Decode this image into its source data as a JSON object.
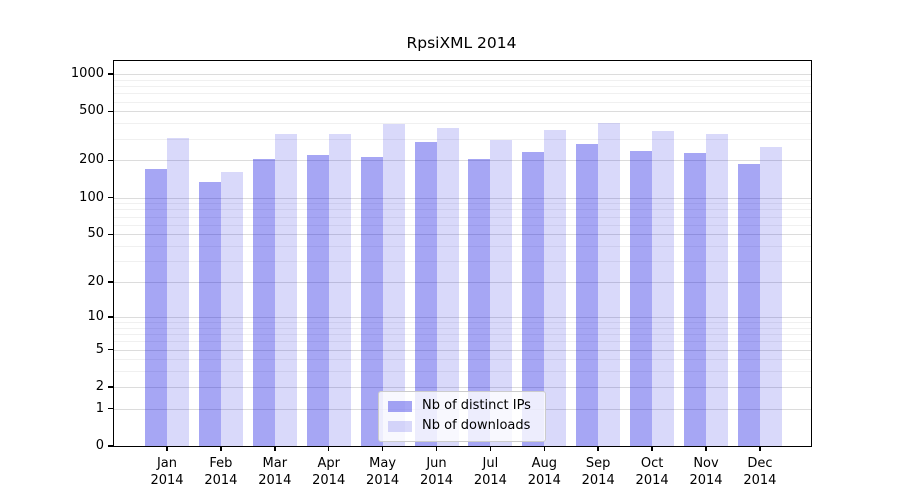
{
  "chart_data": {
    "type": "bar",
    "title": "RpsiXML 2014",
    "categories": [
      "Jan",
      "Feb",
      "Mar",
      "Apr",
      "May",
      "Jun",
      "Jul",
      "Aug",
      "Sep",
      "Oct",
      "Nov",
      "Dec"
    ],
    "category_year": "2014",
    "series": [
      {
        "name": "Nb of distinct IPs",
        "color": "rgba(0,0,224,0.35)",
        "values": [
          172,
          133,
          205,
          222,
          213,
          284,
          204,
          234,
          271,
          238,
          229,
          188
        ]
      },
      {
        "name": "Nb of downloads",
        "color": "rgba(0,0,224,0.15)",
        "values": [
          303,
          162,
          325,
          329,
          396,
          369,
          292,
          350,
          399,
          345,
          325,
          257
        ]
      }
    ],
    "yscale": "log1p",
    "ylim": [
      0,
      1000
    ],
    "yticks": [
      0,
      1,
      2,
      5,
      10,
      20,
      50,
      100,
      200,
      500,
      1000
    ],
    "grid": "horizontal log minor+major gridlines",
    "legend_position": "lower center"
  },
  "colors": {
    "background": "#ffffff",
    "axis": "#000000",
    "grid_major": "#dcdcdc",
    "grid_minor": "#f0f0f0",
    "legend_border": "#cccccc",
    "legend_bg": "rgba(255,255,255,0.8)"
  }
}
